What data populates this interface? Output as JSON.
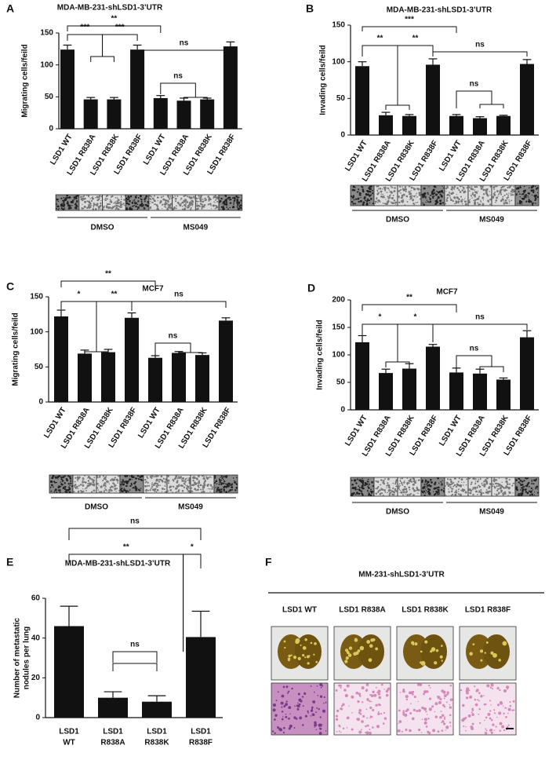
{
  "chart_data": [
    {
      "type": "bar",
      "panel": "A",
      "title": "MDA-MB-231-shLSD1-3’UTR",
      "y_label": "Migrating cells/feild",
      "categories": [
        "LSD1 WT",
        "LSD1 R838A",
        "LSD1 R838K",
        "LSD1 R838F",
        "LSD1 WT",
        "LSD1 R838A",
        "LSD1 R838K",
        "LSD1 R838F"
      ],
      "values": [
        124,
        46,
        46,
        124,
        48,
        44,
        46,
        129
      ],
      "errors": [
        7,
        3,
        3,
        7,
        4,
        4,
        2,
        7
      ],
      "color": "#111111",
      "ylim": [
        0,
        150
      ],
      "yticks": [
        0,
        50,
        100,
        150
      ],
      "annotations": [
        "**",
        "***",
        "***",
        "ns",
        "ns"
      ],
      "groups": [
        "DMSO",
        "MS049"
      ]
    },
    {
      "type": "bar",
      "panel": "B",
      "title": "MDA-MB-231-shLSD1-3’UTR",
      "y_label": "Invading cells/feild",
      "categories": [
        "LSD1 WT",
        "LSD1 R838A",
        "LSD1 R838K",
        "LSD1 R838F",
        "LSD1 WT",
        "LSD1 R838A",
        "LSD1 R838K",
        "LSD1 R838F"
      ],
      "values": [
        94,
        27,
        26,
        96,
        26,
        23,
        26,
        97
      ],
      "errors": [
        6,
        4,
        2,
        8,
        2,
        2,
        1,
        6
      ],
      "color": "#111111",
      "ylim": [
        0,
        150
      ],
      "yticks": [
        0,
        50,
        100,
        150
      ],
      "annotations": [
        "***",
        "**",
        "**",
        "ns",
        "ns"
      ],
      "groups": [
        "DMSO",
        "MS049"
      ]
    },
    {
      "type": "bar",
      "panel": "C",
      "title": "MCF7",
      "y_label": "Migrating cells/feild",
      "categories": [
        "LSD1 WT",
        "LSD1 R838A",
        "LSD1 R838K",
        "LSD1 R838F",
        "LSD1 WT",
        "LSD1 R838A",
        "LSD1 R838K",
        "LSD1 R838F"
      ],
      "values": [
        122,
        69,
        71,
        120,
        63,
        70,
        67,
        116
      ],
      "errors": [
        9,
        5,
        4,
        7,
        3,
        2,
        3,
        4
      ],
      "color": "#111111",
      "ylim": [
        0,
        150
      ],
      "yticks": [
        0,
        50,
        100,
        150
      ],
      "annotations": [
        "**",
        "*",
        "**",
        "ns",
        "ns"
      ],
      "groups": [
        "DMSO",
        "MS049"
      ]
    },
    {
      "type": "bar",
      "panel": "D",
      "title": "MCF7",
      "y_label": "Invading cells/feild",
      "categories": [
        "LSD1 WT",
        "LSD1 R838A",
        "LSD1 R838K",
        "LSD1 R838F",
        "LSD1 WT",
        "LSD1 R838A",
        "LSD1 R838K",
        "LSD1 R838F"
      ],
      "values": [
        123,
        67,
        75,
        115,
        68,
        66,
        55,
        132
      ],
      "errors": [
        12,
        7,
        9,
        4,
        8,
        8,
        3,
        12
      ],
      "color": "#111111",
      "ylim": [
        0,
        200
      ],
      "yticks": [
        0,
        50,
        100,
        150,
        200
      ],
      "annotations": [
        "**",
        "*",
        "*",
        "ns",
        "ns"
      ],
      "groups": [
        "DMSO",
        "MS049"
      ]
    },
    {
      "type": "bar",
      "panel": "E",
      "title": "MDA-MB-231-shLSD1-3’UTR",
      "y_label": [
        "Number of metastatic",
        "nodules per lung"
      ],
      "categories": [
        [
          "LSD1",
          "WT"
        ],
        [
          "LSD1",
          "R838A"
        ],
        [
          "LSD1",
          "R838K"
        ],
        [
          "LSD1",
          "R838F"
        ]
      ],
      "values": [
        46,
        10,
        8,
        40.5
      ],
      "errors": [
        10,
        3,
        3,
        13
      ],
      "color": "#111111",
      "ylim": [
        0,
        60
      ],
      "yticks": [
        0,
        20,
        40,
        60
      ],
      "annotations": [
        "ns",
        "**",
        "*",
        "ns"
      ]
    }
  ],
  "panel_f": {
    "panel": "F",
    "title": "MM-231-shLSD1-3’UTR",
    "columns": [
      "LSD1 WT",
      "LSD1 R838A",
      "LSD1 R838K",
      "LSD1 R838F"
    ]
  }
}
